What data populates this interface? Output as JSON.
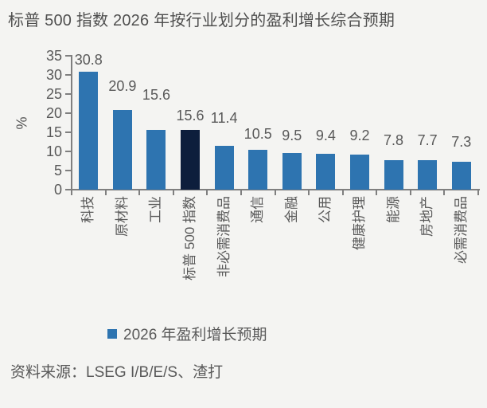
{
  "title": "标普 500 指数 2026 年按行业划分的盈利增长综合预期",
  "chart_data": {
    "type": "bar",
    "categories": [
      "科技",
      "原材料",
      "工业",
      "标普 500 指数",
      "非必需消费品",
      "通信",
      "金融",
      "公用",
      "健康护理",
      "能源",
      "房地产",
      "必需消费品"
    ],
    "values": [
      30.8,
      20.9,
      15.6,
      15.6,
      11.4,
      10.5,
      9.5,
      9.4,
      9.2,
      7.8,
      7.7,
      7.3
    ],
    "data_labels": [
      "30.8",
      "20.9",
      "15.6",
      "15.6",
      "11.4",
      "10.5",
      "9.5",
      "9.4",
      "9.2",
      "7.8",
      "7.7",
      "7.3"
    ],
    "series_name": "2026 年盈利增长预期",
    "ylabel": "%",
    "ylim": [
      0,
      35
    ],
    "yticks": [
      0,
      5,
      10,
      15,
      20,
      25,
      30,
      35
    ],
    "grid": false,
    "legend_position": "bottom",
    "highlight_index": 3,
    "highlight_category": "标普 500 指数",
    "colors": {
      "bar": "#2e74b0",
      "highlight": "#0d1e3c",
      "axis": "#7f7f7f",
      "text": "#595959"
    }
  },
  "legend": {
    "label": "2026 年盈利增长预期",
    "swatch_color": "#2e74b0"
  },
  "source_note": "资料来源：LSEG I/B/E/S、渣打",
  "background_color": "#f4f4f2"
}
